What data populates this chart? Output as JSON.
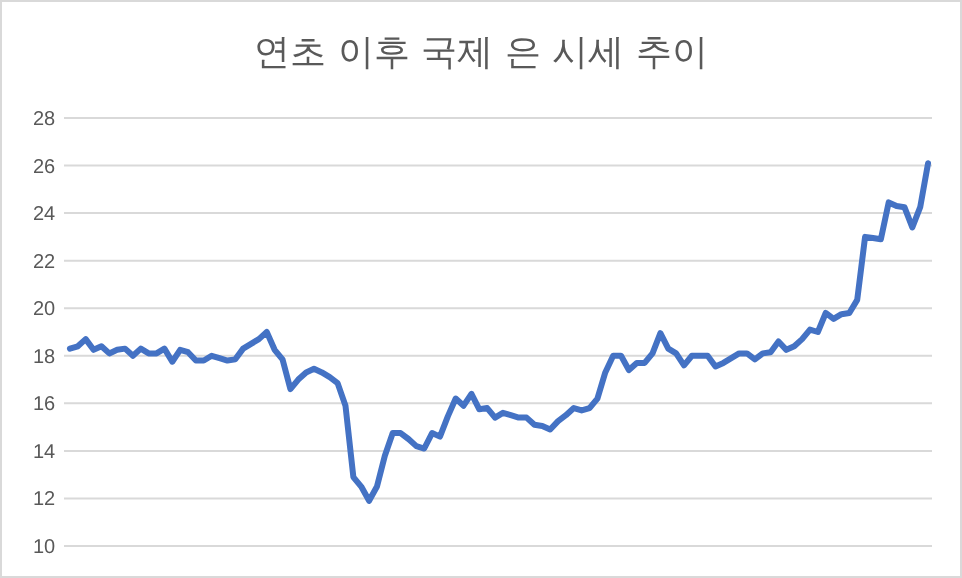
{
  "chart_data": {
    "type": "line",
    "title": "연초 이후 국제 은 시세 추이",
    "categories": [
      null,
      null,
      null,
      null,
      null,
      null,
      null,
      null,
      null,
      null,
      null,
      null,
      null,
      null,
      null,
      null,
      null,
      null,
      null,
      null,
      null,
      null,
      null,
      null,
      null,
      null,
      null,
      null,
      null,
      null,
      null,
      null,
      null,
      null,
      null,
      null,
      null,
      null,
      null,
      null,
      null,
      null,
      null,
      null,
      null,
      null,
      null,
      null,
      null,
      null,
      null,
      null,
      null,
      null,
      null,
      null,
      null,
      null,
      null,
      null,
      null,
      null,
      null,
      null,
      null,
      null,
      null,
      null,
      null,
      null,
      null,
      null,
      null,
      null,
      null,
      null,
      null,
      null,
      null,
      null,
      null,
      null,
      null,
      null,
      null,
      null,
      null,
      null,
      null,
      null,
      null,
      null,
      null,
      null,
      null,
      null,
      null,
      null,
      null,
      null,
      null,
      null,
      null,
      null,
      null,
      null,
      null,
      null,
      null,
      null
    ],
    "series": [
      {
        "color": "#4472c4",
        "values": [
          18.3,
          18.4,
          18.7,
          18.25,
          18.4,
          18.1,
          18.25,
          18.3,
          18.0,
          18.3,
          18.1,
          18.1,
          18.3,
          17.75,
          18.25,
          18.15,
          17.8,
          17.8,
          18.0,
          17.9,
          17.8,
          17.85,
          18.3,
          18.5,
          18.7,
          19.0,
          18.25,
          17.85,
          16.6,
          17.0,
          17.3,
          17.45,
          17.3,
          17.1,
          16.85,
          15.9,
          12.9,
          12.5,
          11.9,
          12.5,
          13.8,
          14.75,
          14.75,
          14.5,
          14.2,
          14.1,
          14.75,
          14.6,
          15.45,
          16.2,
          15.9,
          16.4,
          15.75,
          15.8,
          15.4,
          15.6,
          15.5,
          15.4,
          15.4,
          15.1,
          15.05,
          14.9,
          15.25,
          15.5,
          15.8,
          15.7,
          15.8,
          16.2,
          17.3,
          18.0,
          18.0,
          17.4,
          17.7,
          17.7,
          18.1,
          18.95,
          18.3,
          18.1,
          17.6,
          18.0,
          18.0,
          18.0,
          17.55,
          17.7,
          17.9,
          18.1,
          18.1,
          17.85,
          18.1,
          18.15,
          18.6,
          18.25,
          18.4,
          18.7,
          19.1,
          19.0,
          19.8,
          19.55,
          19.75,
          19.8,
          20.35,
          23.0,
          22.95,
          22.9,
          24.45,
          24.3,
          24.25,
          23.4,
          24.25,
          26.1
        ]
      }
    ],
    "ylim": [
      10,
      28
    ],
    "yticks": [
      10,
      12,
      14,
      16,
      18,
      20,
      22,
      24,
      26,
      28
    ],
    "grid": "y"
  }
}
